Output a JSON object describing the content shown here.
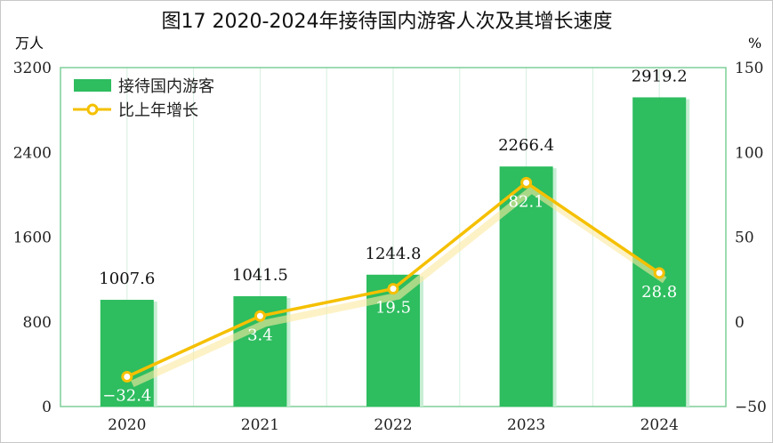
{
  "chart_data": {
    "type": "bar+line",
    "title": "图17 2020-2024年接待国内游客人次及其增长速度",
    "categories": [
      "2020",
      "2021",
      "2022",
      "2023",
      "2024"
    ],
    "y_left_unit": "万人",
    "y_right_unit": "%",
    "ylim_left": [
      0,
      3200
    ],
    "yticks_left": [
      "0",
      "800",
      "1600",
      "2400",
      "3200"
    ],
    "ylim_right": [
      -50,
      150
    ],
    "yticks_right": [
      "-50",
      "0",
      "50",
      "100",
      "150"
    ],
    "grid": "vertical",
    "legend_placement": "top-left",
    "series": [
      {
        "name": "接待国内游客",
        "type": "bar",
        "color": "#2ebd5f",
        "values": [
          1007.6,
          1041.5,
          1244.8,
          2266.4,
          2919.2
        ],
        "labels": [
          "1007.6",
          "1041.5",
          "1244.8",
          "2266.4",
          "2919.2"
        ]
      },
      {
        "name": "比上年增长",
        "type": "line",
        "color": "#f5c000",
        "values": [
          -32.4,
          3.4,
          19.5,
          82.1,
          28.8
        ],
        "labels": [
          "-32.4",
          "3.4",
          "19.5",
          "82.1",
          "28.8"
        ]
      }
    ]
  }
}
